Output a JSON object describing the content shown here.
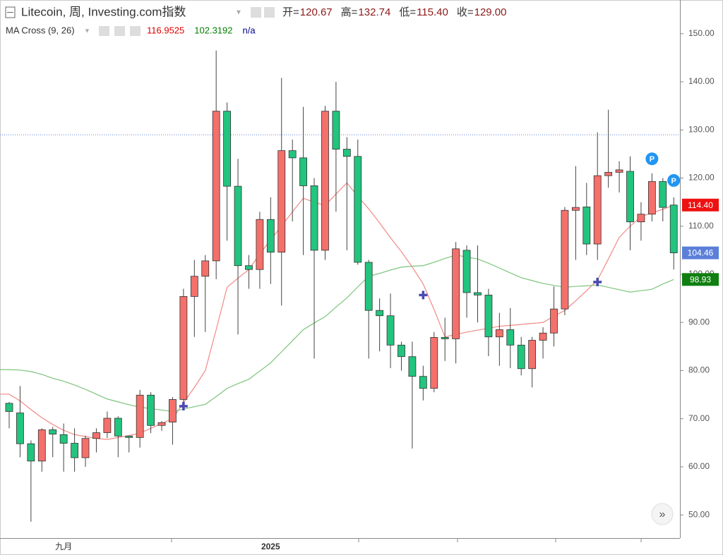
{
  "chart_data": {
    "type": "candlestick",
    "title": "Litecoin, 周, Investing.com指数",
    "ohlc_header": [
      {
        "name": "开=",
        "text": "120.67"
      },
      {
        "name": "高=",
        "text": "132.74"
      },
      {
        "name": "低=",
        "text": "115.40"
      },
      {
        "name": "收=",
        "text": "129.00"
      }
    ],
    "indicator": {
      "name": "MA Cross (9, 26)",
      "values": [
        {
          "text": 116.9525,
          "color": "#e00000"
        },
        {
          "text": 102.3192,
          "color": "#008000"
        },
        {
          "text": "n/a",
          "color": "#00008b"
        }
      ]
    },
    "categories": [
      null,
      null,
      null,
      null,
      null,
      "九月",
      null,
      null,
      null,
      null,
      null,
      null,
      null,
      null,
      null,
      null,
      null,
      null,
      null,
      null,
      null,
      null,
      null,
      null,
      "2025",
      null,
      null,
      null,
      null,
      null,
      null,
      null,
      null,
      null,
      null,
      null,
      null,
      null,
      null,
      null,
      null,
      null,
      null,
      null,
      null,
      null,
      null,
      null,
      null,
      null,
      null,
      null,
      null,
      null,
      null,
      null,
      null,
      null,
      null,
      null,
      null,
      null
    ],
    "open": [
      73.2,
      71.2,
      64.8,
      61.2,
      67.7,
      66.7,
      64.9,
      61.9,
      65.9,
      67.1,
      70.1,
      66.4,
      66.1,
      74.9,
      68.6,
      69.3,
      74,
      95.4,
      99.6,
      102.8,
      133.9,
      118.3,
      101.8,
      101,
      111.4,
      104.6,
      125.7,
      124.2,
      118.4,
      105,
      133.9,
      126,
      124.5,
      102.5,
      92.5,
      91.4,
      85.3,
      82.9,
      78.8,
      76.3,
      86.9,
      86.6,
      105,
      96.2,
      95.7,
      87,
      88.5,
      85.3,
      80.4,
      86.3,
      87.8,
      92.8,
      113.3,
      114,
      106.3,
      120.5,
      121.2,
      121.4,
      110.9,
      112.5,
      119.3,
      114.4
    ],
    "high": [
      73.5,
      76.8,
      65.5,
      68,
      68.3,
      69,
      68,
      66.5,
      68,
      71.5,
      70.5,
      66.5,
      76,
      75.5,
      69.5,
      74.5,
      97,
      103,
      104,
      146.5,
      135.7,
      124,
      104,
      113,
      116,
      140.8,
      128,
      134.8,
      120,
      135,
      140,
      128.5,
      128,
      103,
      95,
      96,
      86,
      86,
      81,
      88,
      91,
      106.7,
      106,
      106,
      97,
      92,
      93,
      87,
      87,
      89,
      97.5,
      114,
      122.5,
      119,
      129.5,
      134.2,
      123.5,
      124.5,
      115,
      121,
      120,
      116
    ],
    "low": [
      68,
      62,
      48.6,
      59,
      62,
      59,
      59,
      60,
      63,
      66,
      62,
      63,
      64,
      67,
      67.5,
      64.6,
      72,
      87,
      88,
      99,
      107,
      87.5,
      97,
      97,
      98,
      93.5,
      111,
      104,
      82.5,
      103,
      113,
      105,
      102,
      82.5,
      84,
      80.5,
      80,
      63.8,
      73.8,
      75.5,
      82,
      81.5,
      91,
      90,
      83,
      81,
      80.5,
      79,
      76.5,
      82.5,
      85,
      91.5,
      103,
      104,
      103,
      118,
      117,
      105,
      107,
      111,
      111,
      101
    ],
    "close": [
      71.5,
      64.8,
      61.2,
      67.7,
      66.8,
      64.9,
      61.9,
      65.9,
      67.1,
      70.1,
      66.4,
      66.1,
      74.9,
      68.6,
      69.2,
      74,
      95.4,
      99.6,
      102.8,
      133.9,
      118.3,
      101.8,
      101,
      111.4,
      104.6,
      125.7,
      124.2,
      118.4,
      105,
      133.9,
      126,
      124.5,
      102.5,
      92.5,
      91.4,
      85.3,
      82.9,
      78.8,
      76.3,
      86.9,
      86.6,
      105.3,
      96.2,
      95.7,
      87,
      88.5,
      85.3,
      80.4,
      86.3,
      87.8,
      92.8,
      113.3,
      113.9,
      106.3,
      120.5,
      121.2,
      121.7,
      110.9,
      112.5,
      119.3,
      113.9,
      104.46
    ],
    "up_color": "#f4706b",
    "down_color": "#22c47e",
    "ma_series": [
      {
        "color": "#f08a85",
        "values": [
          75.1,
          73.7,
          71.9,
          70.2,
          68.8,
          67.6,
          66.7,
          66.3,
          65.9,
          65.7,
          66.1,
          66.5,
          67,
          68,
          69,
          70,
          73.3,
          76.5,
          80,
          88.5,
          97.3,
          99.2,
          101,
          104.2,
          107.2,
          110,
          113,
          115.8,
          115,
          114.3,
          116.7,
          119,
          116.2,
          113.6,
          110.7,
          107.6,
          104.7,
          101.5,
          98,
          92.7,
          87,
          87.5,
          88,
          88.4,
          88.8,
          89.2,
          89.4,
          89.6,
          89.8,
          90,
          91.3,
          92.5,
          94.5,
          96.6,
          98.8,
          103.2,
          107.7,
          110,
          112,
          112.8,
          113.5,
          114.4
        ]
      },
      {
        "color": "#7cc47c",
        "values": [
          80.2,
          80.1,
          79.8,
          79.2,
          78.4,
          77.8,
          77,
          76.1,
          75.1,
          74.1,
          73.5,
          72.9,
          72.4,
          72.1,
          71.8,
          71.5,
          72,
          72.5,
          73,
          74.6,
          76.3,
          77.3,
          78.2,
          79.9,
          81.6,
          83.9,
          86.2,
          88.5,
          89.9,
          91.2,
          93.2,
          95.1,
          97.4,
          99.6,
          100.2,
          100.9,
          101.5,
          101.7,
          101.8,
          102.5,
          103.3,
          104,
          103.6,
          103.2,
          102.3,
          101.3,
          100.3,
          99.3,
          98.7,
          98.1,
          97.7,
          97.3,
          97.5,
          97.6,
          97.8,
          97.3,
          96.8,
          96.3,
          96.6,
          96.9,
          98,
          98.93
        ]
      }
    ],
    "cross_signals": {
      "color": "#4a4ab0",
      "values": [
        null,
        null,
        null,
        null,
        null,
        null,
        null,
        null,
        null,
        null,
        null,
        null,
        null,
        null,
        null,
        null,
        72.6,
        null,
        null,
        null,
        null,
        null,
        null,
        null,
        null,
        null,
        null,
        null,
        null,
        null,
        null,
        null,
        null,
        null,
        null,
        null,
        null,
        null,
        95.7,
        null,
        null,
        null,
        null,
        null,
        null,
        null,
        null,
        null,
        null,
        null,
        null,
        null,
        null,
        null,
        98.4,
        null,
        null,
        null,
        null,
        null,
        null,
        null
      ]
    },
    "pivots": {
      "label": "P",
      "color": "#2196f3",
      "values": [
        null,
        null,
        null,
        null,
        null,
        null,
        null,
        null,
        null,
        null,
        null,
        null,
        null,
        null,
        null,
        null,
        null,
        null,
        null,
        null,
        null,
        null,
        null,
        null,
        null,
        null,
        null,
        null,
        null,
        null,
        null,
        null,
        null,
        null,
        null,
        null,
        null,
        null,
        null,
        null,
        null,
        null,
        null,
        null,
        null,
        null,
        null,
        null,
        null,
        null,
        null,
        null,
        null,
        null,
        null,
        null,
        null,
        null,
        null,
        124,
        null,
        119.5
      ]
    },
    "hline": 129,
    "ylim": [
      45.2,
      157
    ],
    "yticks": [
      {
        "value": 150,
        "label": "150.00"
      },
      {
        "value": 140,
        "label": "140.00"
      },
      {
        "value": 130,
        "label": "130.00"
      },
      {
        "value": 120,
        "label": "120.00"
      },
      {
        "value": 110,
        "label": "110.00"
      },
      {
        "value": 100,
        "label": "100.00"
      },
      {
        "value": 90,
        "label": "90.00"
      },
      {
        "value": 80,
        "label": "80.00"
      },
      {
        "value": 70,
        "label": "70.00"
      },
      {
        "value": 60,
        "label": "60.00"
      },
      {
        "value": 50,
        "label": "50.00"
      }
    ],
    "price_tags": [
      {
        "value": 114.4,
        "label": "114.40",
        "color": "#ee1111"
      },
      {
        "value": 104.46,
        "label": "104.46",
        "color": "#5b7fd9"
      },
      {
        "value": 98.93,
        "label": "98.93",
        "color": "#0f7f0f"
      }
    ]
  }
}
